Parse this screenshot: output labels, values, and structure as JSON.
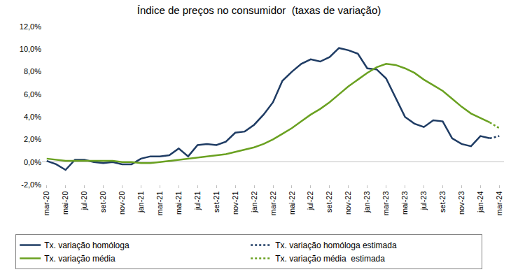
{
  "chart_data": {
    "type": "line",
    "title": "Índice de preços no consumidor  (taxas de variação)",
    "categories": [
      "mar-20",
      null,
      "mai-20",
      null,
      "jul-20",
      null,
      "set-20",
      null,
      "nov-20",
      null,
      "jan-21",
      null,
      "mar-21",
      null,
      "mai-21",
      null,
      "jul-21",
      null,
      "set-21",
      null,
      "nov-21",
      null,
      "jan-22",
      null,
      "mar-22",
      null,
      "mai-22",
      null,
      "jul-22",
      null,
      "set-22",
      null,
      "nov-22",
      null,
      "jan-23",
      null,
      "mar-23",
      null,
      "mai-23",
      null,
      "jul-23",
      null,
      "set-23",
      null,
      "nov-23",
      null,
      "jan-24",
      null,
      "mar-24"
    ],
    "series": [
      {
        "name": "Tx. variação homóloga",
        "color": "#1f3c64",
        "line_style": "solid",
        "values": [
          0.1,
          -0.2,
          -0.7,
          0.2,
          0.2,
          0.0,
          -0.1,
          0.0,
          -0.2,
          -0.2,
          0.3,
          0.5,
          0.5,
          0.6,
          1.2,
          0.5,
          1.5,
          1.6,
          1.5,
          1.8,
          2.6,
          2.7,
          3.3,
          4.2,
          5.3,
          7.2,
          8.0,
          8.7,
          9.1,
          8.9,
          9.3,
          10.1,
          9.9,
          9.6,
          8.3,
          8.2,
          7.4,
          5.7,
          4.0,
          3.4,
          3.1,
          3.7,
          3.6,
          2.1,
          1.6,
          1.4,
          2.3,
          2.1,
          null
        ]
      },
      {
        "name": "Tx. variação homóloga estimada",
        "color": "#1f3c64",
        "line_style": "dot",
        "values": [
          null,
          null,
          null,
          null,
          null,
          null,
          null,
          null,
          null,
          null,
          null,
          null,
          null,
          null,
          null,
          null,
          null,
          null,
          null,
          null,
          null,
          null,
          null,
          null,
          null,
          null,
          null,
          null,
          null,
          null,
          null,
          null,
          null,
          null,
          null,
          null,
          null,
          null,
          null,
          null,
          null,
          null,
          null,
          null,
          null,
          null,
          null,
          2.1,
          2.3
        ]
      },
      {
        "name": "Tx. variação média",
        "color": "#6aa121",
        "line_style": "solid",
        "values": [
          0.3,
          0.2,
          0.1,
          0.1,
          0.1,
          0.1,
          0.1,
          0.1,
          0.0,
          0.0,
          -0.1,
          -0.1,
          0.0,
          0.1,
          0.2,
          0.3,
          0.4,
          0.5,
          0.6,
          0.7,
          0.9,
          1.1,
          1.3,
          1.6,
          2.0,
          2.5,
          3.0,
          3.6,
          4.2,
          4.7,
          5.3,
          6.0,
          6.7,
          7.3,
          7.9,
          8.4,
          8.7,
          8.6,
          8.3,
          7.9,
          7.3,
          6.8,
          6.3,
          5.6,
          4.9,
          4.3,
          3.9,
          3.5,
          null
        ]
      },
      {
        "name": "Tx. variação média  estimada",
        "color": "#6aa121",
        "line_style": "dot",
        "values": [
          null,
          null,
          null,
          null,
          null,
          null,
          null,
          null,
          null,
          null,
          null,
          null,
          null,
          null,
          null,
          null,
          null,
          null,
          null,
          null,
          null,
          null,
          null,
          null,
          null,
          null,
          null,
          null,
          null,
          null,
          null,
          null,
          null,
          null,
          null,
          null,
          null,
          null,
          null,
          null,
          null,
          null,
          null,
          null,
          null,
          null,
          null,
          3.5,
          3.0
        ]
      }
    ],
    "ylim": [
      -2,
      12
    ],
    "yticks": [
      {
        "value": -2,
        "label": "-2,0%"
      },
      {
        "value": 0,
        "label": "0,0%"
      },
      {
        "value": 2,
        "label": "2,0%"
      },
      {
        "value": 4,
        "label": "4,0%"
      },
      {
        "value": 6,
        "label": "6,0%"
      },
      {
        "value": 8,
        "label": "8,0%"
      },
      {
        "value": 10,
        "label": "10,0%"
      },
      {
        "value": 12,
        "label": "12,0%"
      }
    ],
    "grid": false,
    "legend": "bottom"
  }
}
